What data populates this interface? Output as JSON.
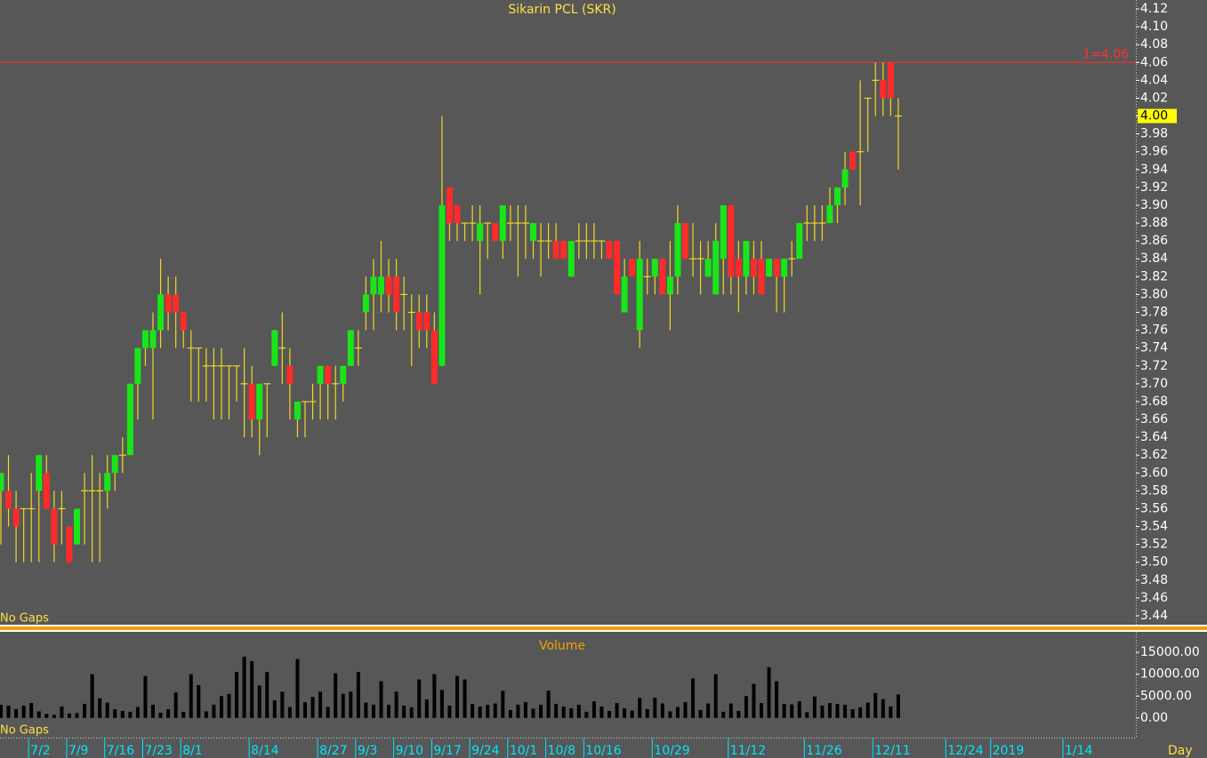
{
  "chart_data": [
    {
      "type": "candlestick",
      "title": "Sikarin PCL (SKR)",
      "note": "No Gaps",
      "up_color": "#19e619",
      "down_color": "#ff2a2a",
      "wick_color": "#f0d820",
      "open": [
        3.58,
        3.58,
        3.56,
        3.56,
        3.56,
        3.58,
        3.6,
        3.56,
        3.56,
        3.54,
        3.52,
        3.58,
        3.58,
        3.58,
        3.58,
        3.6,
        3.62,
        3.62,
        3.7,
        3.74,
        3.74,
        3.76,
        3.8,
        3.8,
        3.78,
        3.74,
        3.74,
        3.72,
        3.72,
        3.72,
        3.72,
        3.72,
        3.7,
        3.7,
        3.66,
        3.7,
        3.72,
        3.74,
        3.72,
        3.66,
        3.68,
        3.68,
        3.7,
        3.72,
        3.7,
        3.7,
        3.72,
        3.74,
        3.78,
        3.8,
        3.8,
        3.82,
        3.82,
        3.8,
        3.78,
        3.78,
        3.78,
        3.76,
        3.72,
        3.92,
        3.9,
        3.88,
        3.88,
        3.86,
        3.88,
        3.88,
        3.86,
        3.88,
        3.88,
        3.88,
        3.86,
        3.86,
        3.86,
        3.86,
        3.86,
        3.82,
        3.86,
        3.86,
        3.86,
        3.86,
        3.86,
        3.86,
        3.78,
        3.84,
        3.76,
        3.82,
        3.82,
        3.84,
        3.8,
        3.82,
        3.88,
        3.84,
        3.84,
        3.82,
        3.8,
        3.84,
        3.9,
        3.84,
        3.82,
        3.84,
        3.84,
        3.82,
        3.84,
        3.82,
        3.84,
        3.84,
        3.88,
        3.88,
        3.88,
        3.88,
        3.9,
        3.92,
        3.96,
        3.96,
        4.02,
        4.04,
        4.04,
        4.06,
        4.0
      ],
      "high": [
        3.6,
        3.62,
        3.58,
        3.56,
        3.6,
        3.62,
        3.62,
        3.58,
        3.58,
        3.54,
        3.56,
        3.6,
        3.62,
        3.6,
        3.62,
        3.62,
        3.64,
        3.7,
        3.74,
        3.76,
        3.78,
        3.84,
        3.82,
        3.82,
        3.78,
        3.76,
        3.74,
        3.74,
        3.74,
        3.74,
        3.72,
        3.72,
        3.74,
        3.72,
        3.7,
        3.7,
        3.76,
        3.78,
        3.74,
        3.68,
        3.68,
        3.7,
        3.72,
        3.72,
        3.72,
        3.72,
        3.76,
        3.76,
        3.82,
        3.84,
        3.86,
        3.84,
        3.84,
        3.82,
        3.8,
        3.8,
        3.8,
        3.78,
        4.0,
        3.92,
        3.9,
        3.88,
        3.9,
        3.9,
        3.88,
        3.88,
        3.9,
        3.9,
        3.9,
        3.9,
        3.88,
        3.88,
        3.88,
        3.88,
        3.86,
        3.86,
        3.88,
        3.88,
        3.88,
        3.86,
        3.86,
        3.86,
        3.84,
        3.84,
        3.86,
        3.84,
        3.84,
        3.84,
        3.86,
        3.9,
        3.88,
        3.88,
        3.86,
        3.86,
        3.88,
        3.9,
        3.9,
        3.86,
        3.86,
        3.86,
        3.86,
        3.84,
        3.84,
        3.84,
        3.86,
        3.88,
        3.9,
        3.9,
        3.9,
        3.92,
        3.92,
        3.96,
        3.96,
        4.04,
        4.02,
        4.06,
        4.06,
        4.06,
        4.02
      ],
      "low": [
        3.52,
        3.54,
        3.5,
        3.5,
        3.5,
        3.5,
        3.56,
        3.5,
        3.52,
        3.5,
        3.52,
        3.52,
        3.5,
        3.5,
        3.56,
        3.58,
        3.6,
        3.62,
        3.66,
        3.72,
        3.66,
        3.74,
        3.76,
        3.74,
        3.74,
        3.68,
        3.68,
        3.68,
        3.66,
        3.66,
        3.66,
        3.68,
        3.64,
        3.64,
        3.62,
        3.64,
        3.72,
        3.7,
        3.66,
        3.64,
        3.64,
        3.66,
        3.66,
        3.66,
        3.66,
        3.68,
        3.72,
        3.72,
        3.76,
        3.76,
        3.78,
        3.78,
        3.76,
        3.76,
        3.72,
        3.74,
        3.74,
        3.7,
        3.72,
        3.86,
        3.86,
        3.86,
        3.86,
        3.8,
        3.84,
        3.86,
        3.84,
        3.86,
        3.82,
        3.84,
        3.84,
        3.82,
        3.84,
        3.84,
        3.84,
        3.82,
        3.84,
        3.84,
        3.84,
        3.84,
        3.84,
        3.8,
        3.78,
        3.82,
        3.74,
        3.8,
        3.8,
        3.8,
        3.76,
        3.8,
        3.84,
        3.82,
        3.8,
        3.82,
        3.8,
        3.8,
        3.8,
        3.78,
        3.8,
        3.8,
        3.8,
        3.82,
        3.78,
        3.78,
        3.82,
        3.84,
        3.86,
        3.86,
        3.86,
        3.88,
        3.88,
        3.9,
        3.94,
        3.9,
        3.96,
        4.0,
        4.0,
        4.0,
        3.94
      ],
      "close": [
        3.6,
        3.56,
        3.54,
        3.56,
        3.56,
        3.62,
        3.56,
        3.52,
        3.56,
        3.5,
        3.56,
        3.58,
        3.58,
        3.58,
        3.6,
        3.62,
        3.62,
        3.7,
        3.74,
        3.76,
        3.76,
        3.8,
        3.78,
        3.78,
        3.76,
        3.74,
        3.74,
        3.72,
        3.72,
        3.72,
        3.72,
        3.72,
        3.7,
        3.66,
        3.7,
        3.7,
        3.76,
        3.74,
        3.7,
        3.68,
        3.68,
        3.68,
        3.72,
        3.7,
        3.7,
        3.72,
        3.76,
        3.74,
        3.8,
        3.82,
        3.82,
        3.8,
        3.78,
        3.8,
        3.78,
        3.76,
        3.76,
        3.7,
        3.9,
        3.88,
        3.88,
        3.88,
        3.88,
        3.88,
        3.88,
        3.86,
        3.9,
        3.88,
        3.88,
        3.88,
        3.88,
        3.86,
        3.86,
        3.84,
        3.84,
        3.86,
        3.86,
        3.86,
        3.86,
        3.86,
        3.84,
        3.8,
        3.82,
        3.82,
        3.84,
        3.82,
        3.84,
        3.8,
        3.82,
        3.88,
        3.84,
        3.84,
        3.84,
        3.84,
        3.86,
        3.9,
        3.82,
        3.82,
        3.86,
        3.82,
        3.8,
        3.84,
        3.82,
        3.84,
        3.84,
        3.88,
        3.88,
        3.88,
        3.88,
        3.9,
        3.92,
        3.94,
        3.94,
        3.96,
        4.02,
        4.04,
        4.02,
        4.02,
        4.0
      ],
      "xticks": [
        {
          "value": 4,
          "label": "7/2"
        },
        {
          "value": 9,
          "label": "7/9"
        },
        {
          "value": 14,
          "label": "7/16"
        },
        {
          "value": 19,
          "label": "7/23"
        },
        {
          "value": 24,
          "label": "8/1"
        },
        {
          "value": 33,
          "label": "8/14"
        },
        {
          "value": 42,
          "label": "8/27"
        },
        {
          "value": 47,
          "label": "9/3"
        },
        {
          "value": 52,
          "label": "9/10"
        },
        {
          "value": 57,
          "label": "9/17"
        },
        {
          "value": 62,
          "label": "9/24"
        },
        {
          "value": 67,
          "label": "10/1"
        },
        {
          "value": 72,
          "label": "10/8"
        },
        {
          "value": 77,
          "label": "10/16"
        },
        {
          "value": 86,
          "label": "10/29"
        },
        {
          "value": 96,
          "label": "11/12"
        },
        {
          "value": 106,
          "label": "11/26"
        },
        {
          "value": 115,
          "label": "12/11"
        },
        {
          "value": 124.6,
          "label": "12/24"
        },
        {
          "value": 130.5,
          "label": "2019"
        },
        {
          "value": 140,
          "label": "1/14"
        }
      ],
      "xlabel": "Day",
      "ylim": [
        3.43,
        4.13
      ],
      "yticks": [
        3.44,
        3.46,
        3.48,
        {
          "value": 3.5,
          "label": "3.50"
        },
        3.52,
        3.54,
        3.56,
        3.58,
        {
          "value": 3.6,
          "label": "3.60"
        },
        3.62,
        3.64,
        3.66,
        3.68,
        {
          "value": 3.7,
          "label": "3.70"
        },
        3.72,
        3.74,
        3.76,
        3.78,
        {
          "value": 3.8,
          "label": "3.80"
        },
        3.82,
        3.84,
        3.86,
        3.88,
        {
          "value": 3.9,
          "label": "3.90"
        },
        3.92,
        3.94,
        3.96,
        3.98,
        {
          "value": 4,
          "label": "4.00"
        },
        4.02,
        4.04,
        4.06,
        4.08,
        {
          "value": 4.1,
          "label": "4.10"
        },
        4.12
      ],
      "reference_line": {
        "value": 4.06,
        "label": "1=4.06"
      },
      "last_price": {
        "value": 4,
        "label": "4.00"
      }
    },
    {
      "type": "bar",
      "title": "Volume",
      "note": "No Gaps",
      "color": "#000000",
      "values": [
        3000,
        2800,
        2000,
        2800,
        3400,
        1500,
        900,
        700,
        2600,
        1000,
        1100,
        3200,
        10000,
        4500,
        3500,
        2000,
        1600,
        1400,
        2500,
        9600,
        3000,
        1200,
        2000,
        5800,
        1400,
        10000,
        7500,
        1500,
        3000,
        5000,
        5500,
        10500,
        14000,
        13000,
        7400,
        10500,
        4000,
        6000,
        2500,
        13500,
        3600,
        4800,
        6000,
        2500,
        10200,
        5500,
        6000,
        10500,
        3500,
        3000,
        8400,
        3000,
        6000,
        2800,
        2400,
        8800,
        4200,
        10000,
        6400,
        2800,
        9600,
        8800,
        3200,
        2600,
        3000,
        3300,
        6200,
        1800,
        3000,
        3600,
        2100,
        3000,
        6200,
        3200,
        2600,
        2200,
        3000,
        1400,
        3800,
        2600,
        1600,
        3400,
        2200,
        1700,
        4600,
        2000,
        4600,
        3300,
        1500,
        2500,
        3600,
        9000,
        1800,
        3300,
        10000,
        1400,
        3300,
        1600,
        5000,
        7800,
        3400,
        11600,
        8400,
        3200,
        3100,
        3800,
        1300,
        4900,
        2800,
        3400,
        3200,
        3000,
        2000,
        2400,
        3500,
        5700,
        4300,
        2600,
        5400
      ],
      "ylim": [
        -4500,
        19500
      ],
      "yticks": [
        {
          "value": 0,
          "label": "0.00"
        },
        {
          "value": 5000,
          "label": "5000.00"
        },
        {
          "value": 10000,
          "label": "10000.00"
        },
        {
          "value": 15000,
          "label": "15000.00"
        }
      ]
    }
  ]
}
